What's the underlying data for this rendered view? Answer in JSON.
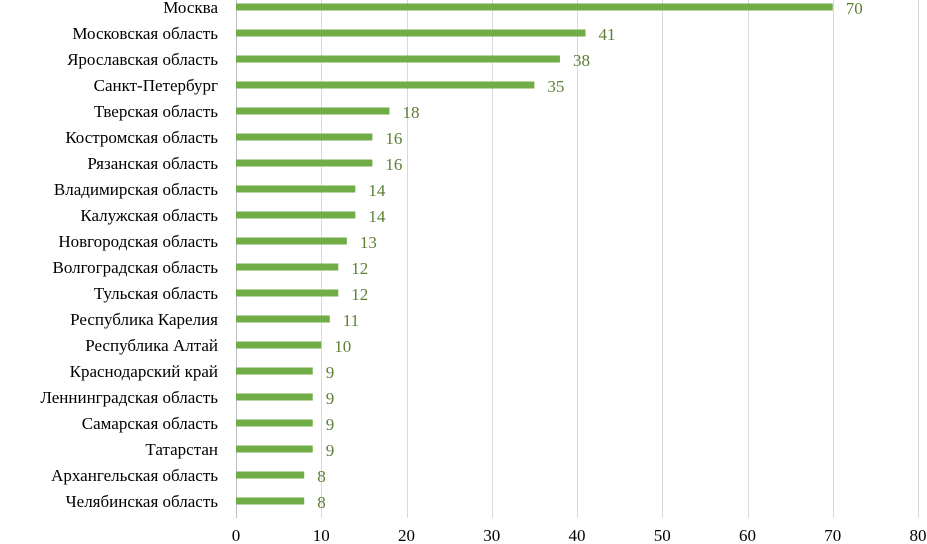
{
  "chart_data": {
    "type": "bar",
    "orientation": "horizontal",
    "title": "",
    "xlabel": "",
    "ylabel": "",
    "xlim": [
      0,
      80
    ],
    "x_ticks": [
      0,
      10,
      20,
      30,
      40,
      50,
      60,
      70,
      80
    ],
    "grid": "vertical",
    "legend": "none",
    "bar_color": "#70ad47",
    "label_color": "#5b7f32",
    "categories": [
      "Москва",
      "Московская область",
      "Ярославская область",
      "Санкт-Петербург",
      "Тверская область",
      "Костромская область",
      "Рязанская область",
      "Владимирская область",
      "Калужская область",
      "Новгородская область",
      "Волгоградская область",
      "Тульская область",
      "Республика Карелия",
      "Республика Алтай",
      "Краснодарский край",
      "Леннинградская область",
      "Самарская область",
      "Татарстан",
      "Архангельская область",
      "Челябинская область"
    ],
    "values": [
      70,
      41,
      38,
      35,
      18,
      16,
      16,
      14,
      14,
      13,
      12,
      12,
      11,
      10,
      9,
      9,
      9,
      9,
      8,
      8
    ]
  }
}
